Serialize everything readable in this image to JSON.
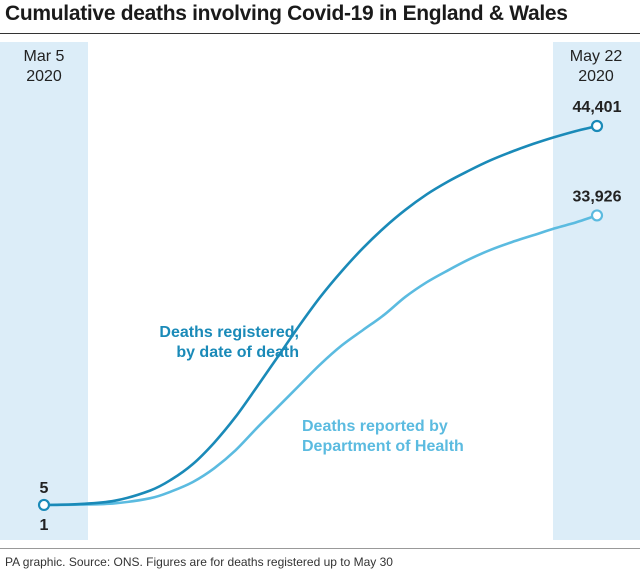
{
  "header": {
    "title": "Cumulative deaths involving Covid-19 in England & Wales"
  },
  "footer": {
    "source": "PA graphic. Source: ONS. Figures are for deaths registered up to May 30"
  },
  "chart_data": {
    "type": "line",
    "title": "Cumulative deaths involving Covid-19 in England & Wales",
    "x_start_label": [
      "Mar 5",
      "2020"
    ],
    "x_end_label": [
      "May 22",
      "2020"
    ],
    "xlim": [
      "2020-03-05",
      "2020-05-22"
    ],
    "ylim": [
      0,
      50000
    ],
    "grid": false,
    "legend": "inline labels",
    "series": [
      {
        "name": "Deaths registered, by date of death",
        "label_lines": [
          "Deaths registered,",
          "by date of death"
        ],
        "color": "#1a8ab8",
        "start_label": "5",
        "end_label": "44,401",
        "x": [
          "2020-03-05",
          "2020-03-10",
          "2020-03-15",
          "2020-03-20",
          "2020-03-23",
          "2020-03-26",
          "2020-03-29",
          "2020-04-01",
          "2020-04-04",
          "2020-04-07",
          "2020-04-10",
          "2020-04-13",
          "2020-04-16",
          "2020-04-19",
          "2020-04-22",
          "2020-04-25",
          "2020-04-28",
          "2020-05-01",
          "2020-05-04",
          "2020-05-07",
          "2020-05-10",
          "2020-05-13",
          "2020-05-16",
          "2020-05-19",
          "2020-05-22"
        ],
        "y": [
          5,
          100,
          500,
          1700,
          3000,
          4800,
          7300,
          10300,
          13800,
          17400,
          21000,
          24400,
          27400,
          30100,
          32500,
          34600,
          36400,
          37900,
          39200,
          40400,
          41400,
          42300,
          43100,
          43800,
          44401
        ]
      },
      {
        "name": "Deaths reported by Department of Health",
        "label_lines": [
          "Deaths reported by",
          "Department of Health"
        ],
        "color": "#5bbbe0",
        "start_label": "1",
        "end_label": "33,926",
        "x": [
          "2020-03-05",
          "2020-03-10",
          "2020-03-15",
          "2020-03-20",
          "2020-03-23",
          "2020-03-26",
          "2020-03-29",
          "2020-04-01",
          "2020-04-04",
          "2020-04-07",
          "2020-04-10",
          "2020-04-13",
          "2020-04-16",
          "2020-04-19",
          "2020-04-22",
          "2020-04-25",
          "2020-04-28",
          "2020-05-01",
          "2020-05-04",
          "2020-05-07",
          "2020-05-10",
          "2020-05-13",
          "2020-05-16",
          "2020-05-19",
          "2020-05-22"
        ],
        "y": [
          1,
          50,
          200,
          800,
          1600,
          2700,
          4300,
          6400,
          9000,
          11500,
          14000,
          16500,
          18700,
          20500,
          22300,
          24400,
          26100,
          27500,
          28800,
          29900,
          30800,
          31600,
          32400,
          33100,
          33926
        ]
      }
    ]
  }
}
